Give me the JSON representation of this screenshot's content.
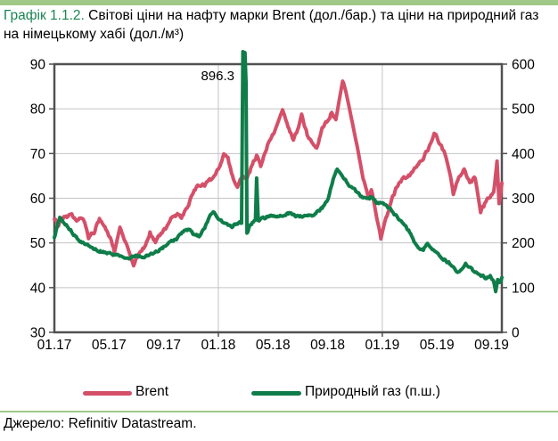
{
  "page": {
    "title_prefix": "Графік 1.1.2.",
    "title_rest": " Світові ціни на нафту марки Brent (дол./бар.) та ціни на природний газ на німецькому хабі (дол./м³)",
    "source": "Джерело: Refinitiv Datastream.",
    "accent_color": "#a0c987",
    "title_prefix_color": "#1a8553"
  },
  "chart_data": {
    "type": "line",
    "title": "Світові ціни на нафту марки Brent (дол./бар.) та ціни на природний газ на німецькому хабі (дол./м³)",
    "x_axis": {
      "tick_labels": [
        "01.17",
        "05.17",
        "09.17",
        "01.18",
        "05.18",
        "09.18",
        "01.19",
        "05.19",
        "09.19"
      ],
      "tick_months": [
        0,
        4,
        8,
        12,
        16,
        20,
        24,
        28,
        32
      ],
      "domain_months": [
        0,
        32.75
      ],
      "vertical_gridline_months": [
        12,
        24
      ]
    },
    "y_axis_left": {
      "series": "Brent",
      "unit": "дол./бар.",
      "min": 30,
      "max": 90,
      "ticks": [
        90,
        80,
        70,
        60,
        50,
        40,
        30
      ]
    },
    "y_axis_right": {
      "series": "Природный газ",
      "unit": "дол./м³",
      "min": 0,
      "max": 600,
      "ticks": [
        600,
        500,
        400,
        300,
        200,
        100,
        0
      ]
    },
    "grid": {
      "horizontal": true,
      "vertical_on_january": true
    },
    "legend_position": "bottom",
    "annotation": {
      "text": "896.3",
      "series": "Природный газ (п.ш.)",
      "x_month": 13.8,
      "value": 896.3
    },
    "series": [
      {
        "name": "Brent",
        "axis": "left",
        "color": "#d45069",
        "points": [
          [
            0,
            55.3
          ],
          [
            0.3,
            54.2
          ],
          [
            0.7,
            55.6
          ],
          [
            1.2,
            56.4
          ],
          [
            1.7,
            55.2
          ],
          [
            2.1,
            55.8
          ],
          [
            2.5,
            51.3
          ],
          [
            2.9,
            52.5
          ],
          [
            3.3,
            55.2
          ],
          [
            3.7,
            53.5
          ],
          [
            4.1,
            51.0
          ],
          [
            4.4,
            48.0
          ],
          [
            4.8,
            53.5
          ],
          [
            5.2,
            50.5
          ],
          [
            5.8,
            44.9
          ],
          [
            6.2,
            47.8
          ],
          [
            6.6,
            49.2
          ],
          [
            7.0,
            52.3
          ],
          [
            7.4,
            50.3
          ],
          [
            7.8,
            52.0
          ],
          [
            8.2,
            53.5
          ],
          [
            8.6,
            55.8
          ],
          [
            9.0,
            56.5
          ],
          [
            9.3,
            55.6
          ],
          [
            9.7,
            57.8
          ],
          [
            10.1,
            60.8
          ],
          [
            10.5,
            62.8
          ],
          [
            11.0,
            63.0
          ],
          [
            11.5,
            64.2
          ],
          [
            12.0,
            66.5
          ],
          [
            12.4,
            69.8
          ],
          [
            12.7,
            68.8
          ],
          [
            13.1,
            64.2
          ],
          [
            13.4,
            62.6
          ],
          [
            13.8,
            65.3
          ],
          [
            14.1,
            64.3
          ],
          [
            14.5,
            67.5
          ],
          [
            14.8,
            69.5
          ],
          [
            15.1,
            67.2
          ],
          [
            15.6,
            72.0
          ],
          [
            16.1,
            74.8
          ],
          [
            16.7,
            79.8
          ],
          [
            17.1,
            76.2
          ],
          [
            17.5,
            73.0
          ],
          [
            17.8,
            75.2
          ],
          [
            18.1,
            78.6
          ],
          [
            18.5,
            74.3
          ],
          [
            18.9,
            72.3
          ],
          [
            19.2,
            71.0
          ],
          [
            19.6,
            75.8
          ],
          [
            20.0,
            77.2
          ],
          [
            20.3,
            79.2
          ],
          [
            20.6,
            77.6
          ],
          [
            21.1,
            86.2
          ],
          [
            21.4,
            83.0
          ],
          [
            21.8,
            77.0
          ],
          [
            22.2,
            71.0
          ],
          [
            22.6,
            64.3
          ],
          [
            23.0,
            60.3
          ],
          [
            23.2,
            62.3
          ],
          [
            23.6,
            55.5
          ],
          [
            23.9,
            50.8
          ],
          [
            24.2,
            54.5
          ],
          [
            24.6,
            59.0
          ],
          [
            25.0,
            62.0
          ],
          [
            25.5,
            64.3
          ],
          [
            26.0,
            65.3
          ],
          [
            26.5,
            67.2
          ],
          [
            27.0,
            68.8
          ],
          [
            27.4,
            71.3
          ],
          [
            27.8,
            74.8
          ],
          [
            28.2,
            72.2
          ],
          [
            28.6,
            70.0
          ],
          [
            29.0,
            64.8
          ],
          [
            29.2,
            61.2
          ],
          [
            29.6,
            64.6
          ],
          [
            30.0,
            66.6
          ],
          [
            30.4,
            63.4
          ],
          [
            30.8,
            64.6
          ],
          [
            31.2,
            56.8
          ],
          [
            31.5,
            58.6
          ],
          [
            31.9,
            60.6
          ],
          [
            32.15,
            61.0
          ],
          [
            32.4,
            68.3
          ],
          [
            32.55,
            58.8
          ],
          [
            32.75,
            63.2
          ]
        ]
      },
      {
        "name": "Природный газ (п.ш.)",
        "axis": "right",
        "color": "#0f7d49",
        "points": [
          [
            0,
            212
          ],
          [
            0.4,
            256
          ],
          [
            0.8,
            243
          ],
          [
            1.2,
            228
          ],
          [
            1.6,
            212
          ],
          [
            2.0,
            200
          ],
          [
            2.5,
            193
          ],
          [
            3.0,
            186
          ],
          [
            3.5,
            181
          ],
          [
            4.0,
            177
          ],
          [
            4.5,
            172
          ],
          [
            5.0,
            170
          ],
          [
            5.5,
            167
          ],
          [
            6.0,
            171
          ],
          [
            6.5,
            168
          ],
          [
            7.0,
            174
          ],
          [
            7.5,
            181
          ],
          [
            8.0,
            191
          ],
          [
            8.5,
            201
          ],
          [
            9.0,
            211
          ],
          [
            9.5,
            226
          ],
          [
            9.8,
            230
          ],
          [
            10.2,
            219
          ],
          [
            10.6,
            215
          ],
          [
            11.0,
            231
          ],
          [
            11.4,
            261
          ],
          [
            11.7,
            270
          ],
          [
            12.0,
            252
          ],
          [
            12.5,
            243
          ],
          [
            13.0,
            238
          ],
          [
            13.4,
            244
          ],
          [
            13.7,
            246
          ],
          [
            13.8,
            896.3
          ],
          [
            13.95,
            896.3
          ],
          [
            14.1,
            222
          ],
          [
            14.3,
            238
          ],
          [
            14.55,
            248
          ],
          [
            14.72,
            252
          ],
          [
            14.8,
            345
          ],
          [
            14.92,
            250
          ],
          [
            15.2,
            255
          ],
          [
            15.6,
            258
          ],
          [
            16.0,
            262
          ],
          [
            16.4,
            257
          ],
          [
            16.8,
            262
          ],
          [
            17.2,
            266
          ],
          [
            17.6,
            261
          ],
          [
            18.0,
            259
          ],
          [
            18.4,
            263
          ],
          [
            18.8,
            261
          ],
          [
            19.2,
            268
          ],
          [
            19.6,
            278
          ],
          [
            20.0,
            293
          ],
          [
            20.4,
            341
          ],
          [
            20.7,
            366
          ],
          [
            21.0,
            352
          ],
          [
            21.3,
            341
          ],
          [
            21.6,
            328
          ],
          [
            22.0,
            318
          ],
          [
            22.4,
            306
          ],
          [
            22.8,
            298
          ],
          [
            23.2,
            303
          ],
          [
            23.6,
            288
          ],
          [
            24.0,
            292
          ],
          [
            24.4,
            281
          ],
          [
            24.8,
            268
          ],
          [
            25.2,
            254
          ],
          [
            25.6,
            240
          ],
          [
            26.0,
            224
          ],
          [
            26.4,
            199
          ],
          [
            26.7,
            190
          ],
          [
            27.0,
            186
          ],
          [
            27.3,
            196
          ],
          [
            27.6,
            189
          ],
          [
            28.0,
            181
          ],
          [
            28.4,
            167
          ],
          [
            28.8,
            157
          ],
          [
            29.2,
            147
          ],
          [
            29.5,
            137
          ],
          [
            29.8,
            142
          ],
          [
            30.1,
            152
          ],
          [
            30.4,
            147
          ],
          [
            30.7,
            137
          ],
          [
            31.0,
            131
          ],
          [
            31.3,
            127
          ],
          [
            31.6,
            121
          ],
          [
            31.9,
            126
          ],
          [
            32.15,
            117
          ],
          [
            32.3,
            95
          ],
          [
            32.45,
            119
          ],
          [
            32.6,
            113
          ],
          [
            32.75,
            122
          ]
        ]
      }
    ]
  }
}
